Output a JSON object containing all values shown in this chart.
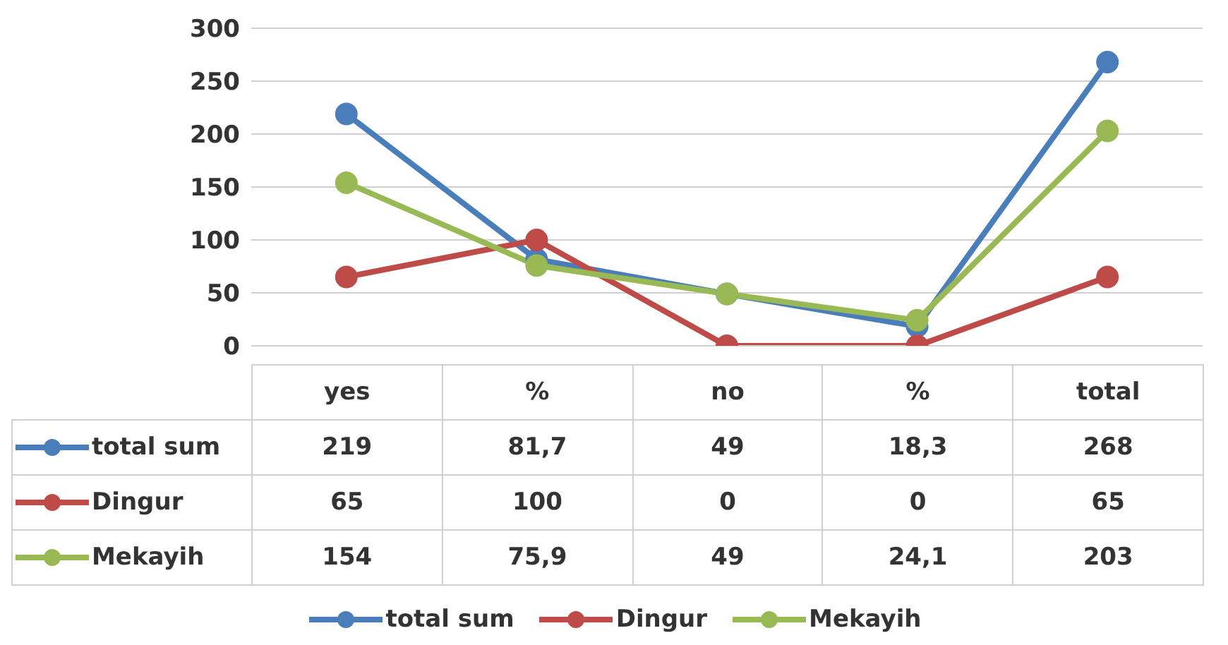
{
  "chart_data": {
    "type": "line",
    "categories": [
      "yes",
      "%",
      "no",
      "%",
      "total"
    ],
    "series": [
      {
        "name": "total sum",
        "color": "#4a7ebb",
        "values": [
          219,
          81.7,
          49,
          18.3,
          268
        ],
        "value_labels": [
          "219",
          "81,7",
          "49",
          "18,3",
          "268"
        ]
      },
      {
        "name": "Dingur",
        "color": "#be4b48",
        "values": [
          65,
          100,
          0,
          0,
          65
        ],
        "value_labels": [
          "65",
          "100",
          "0",
          "0",
          "65"
        ]
      },
      {
        "name": "Mekayih",
        "color": "#98b954",
        "values": [
          154,
          75.9,
          49,
          24.1,
          203
        ],
        "value_labels": [
          "154",
          "75,9",
          "49",
          "24,1",
          "203"
        ]
      }
    ],
    "ylim": [
      0,
      300
    ],
    "yticks": [
      0,
      50,
      100,
      150,
      200,
      250,
      300
    ],
    "grid": "y",
    "legend": "bottom",
    "marker": "circle",
    "line_style": "solid"
  }
}
